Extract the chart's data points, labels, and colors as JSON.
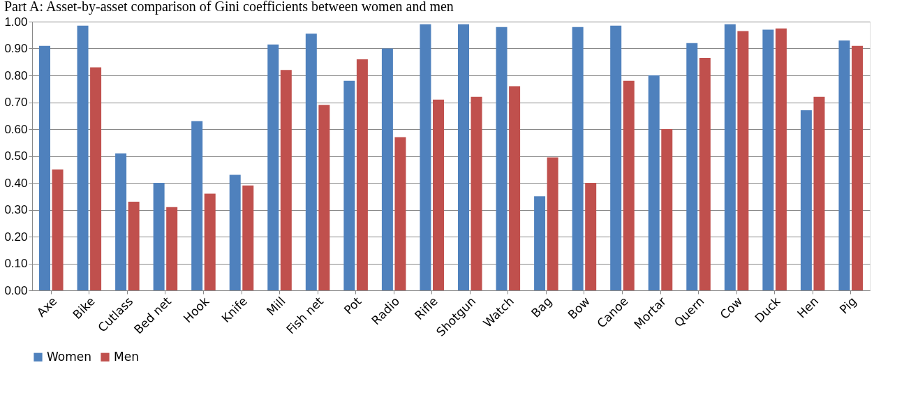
{
  "chart_data": {
    "type": "bar",
    "title": "Part A:  Asset-by-asset comparison of Gini coefficients between women and men",
    "categories": [
      "Axe",
      "Bike",
      "Cutlass",
      "Bed net",
      "Hook",
      "Knife",
      "Mill",
      "Fish net",
      "Pot",
      "Radio",
      "Rifle",
      "Shotgun",
      "Watch",
      "Bag",
      "Bow",
      "Canoe",
      "Mortar",
      "Quern",
      "Cow",
      "Duck",
      "Hen",
      "Pig"
    ],
    "series": [
      {
        "name": "Women",
        "color": "#4f81bd",
        "values": [
          0.91,
          0.985,
          0.51,
          0.4,
          0.63,
          0.43,
          0.915,
          0.955,
          0.78,
          0.9,
          0.99,
          0.99,
          0.98,
          0.35,
          0.98,
          0.985,
          0.8,
          0.92,
          0.99,
          0.97,
          0.67,
          0.93
        ]
      },
      {
        "name": "Men",
        "color": "#c0504d",
        "values": [
          0.45,
          0.83,
          0.33,
          0.31,
          0.36,
          0.39,
          0.82,
          0.69,
          0.86,
          0.57,
          0.71,
          0.72,
          0.76,
          0.495,
          0.4,
          0.78,
          0.6,
          0.865,
          0.965,
          0.975,
          0.72,
          0.91
        ]
      }
    ],
    "ylim": [
      0,
      1
    ],
    "yticks": [
      {
        "value": 0,
        "label": "0.00"
      },
      {
        "value": 0.1,
        "label": "0.10"
      },
      {
        "value": 0.2,
        "label": "0.20"
      },
      {
        "value": 0.3,
        "label": "0.30"
      },
      {
        "value": 0.4,
        "label": "0.40"
      },
      {
        "value": 0.5,
        "label": "0.50"
      },
      {
        "value": 0.6,
        "label": "0.60"
      },
      {
        "value": 0.7,
        "label": "0.70"
      },
      {
        "value": 0.8,
        "label": "0.80"
      },
      {
        "value": 0.9,
        "label": "0.90"
      },
      {
        "value": 1,
        "label": "1.00"
      }
    ],
    "grid": "y",
    "legend": "bottom"
  }
}
